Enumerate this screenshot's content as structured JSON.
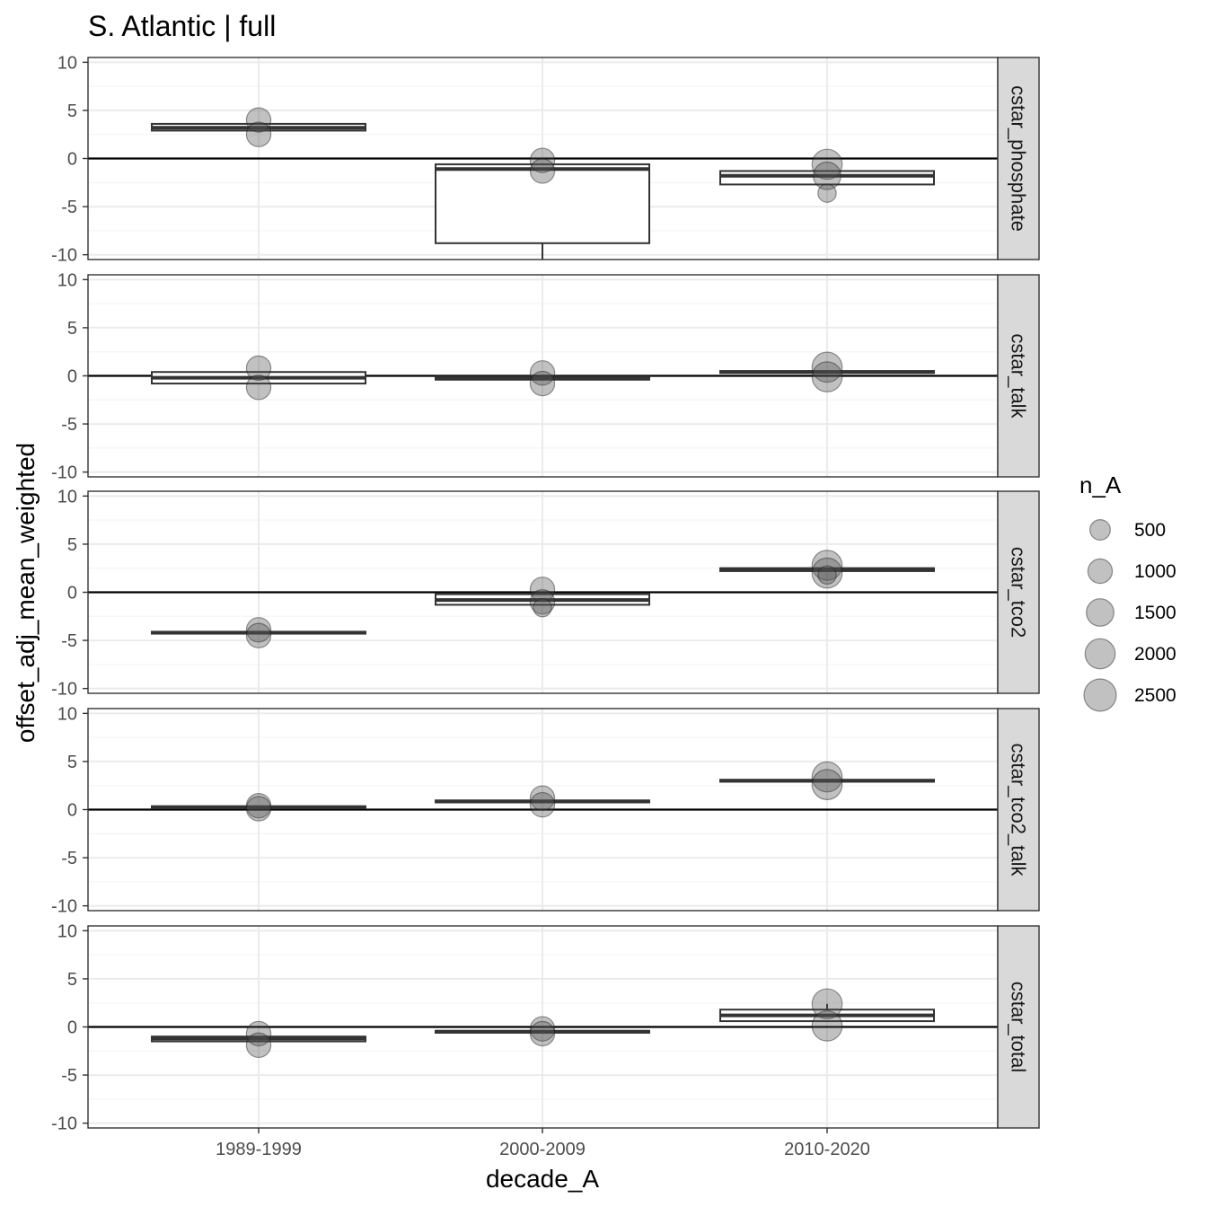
{
  "chart_data": {
    "type": "box",
    "title": "S. Atlantic | full",
    "xlabel": "decade_A",
    "ylabel": "offset_adj_mean_weighted",
    "categories": [
      "1989-1999",
      "2000-2009",
      "2010-2020"
    ],
    "ylim": [
      -10.5,
      10.5
    ],
    "yticks": [
      10,
      5,
      0,
      -5,
      -10
    ],
    "ytick_labels": [
      "10",
      "5",
      "0",
      "-5",
      "-10"
    ],
    "grid": true,
    "reference_line": 0,
    "legend": {
      "title": "n_A",
      "position": "right",
      "labels": [
        "500",
        "1000",
        "1500",
        "2000",
        "2500"
      ],
      "values": [
        500,
        1000,
        1500,
        2000,
        2500
      ]
    },
    "panels": [
      {
        "label": "cstar_phosphate",
        "boxes": [
          {
            "category": "1989-1999",
            "q1": 2.9,
            "median": 3.2,
            "q3": 3.6,
            "whisker_low": 2.9,
            "whisker_high": 3.6
          },
          {
            "category": "2000-2009",
            "q1": -8.8,
            "median": -1.1,
            "q3": -0.6,
            "whisker_low": -12,
            "whisker_high": -0.6
          },
          {
            "category": "2010-2020",
            "q1": -2.7,
            "median": -1.8,
            "q3": -1.3,
            "whisker_low": -2.7,
            "whisker_high": -1.3
          }
        ],
        "points": [
          {
            "category": "1989-1999",
            "y": 4.0,
            "n": 1000
          },
          {
            "category": "1989-1999",
            "y": 2.5,
            "n": 1000
          },
          {
            "category": "2000-2009",
            "y": -0.2,
            "n": 1000
          },
          {
            "category": "2000-2009",
            "y": -1.3,
            "n": 1000
          },
          {
            "category": "2010-2020",
            "y": -0.6,
            "n": 2000
          },
          {
            "category": "2010-2020",
            "y": -1.8,
            "n": 1500
          },
          {
            "category": "2010-2020",
            "y": -3.6,
            "n": 300
          }
        ]
      },
      {
        "label": "cstar_talk",
        "boxes": [
          {
            "category": "1989-1999",
            "q1": -0.8,
            "median": -0.2,
            "q3": 0.4,
            "whisker_low": -0.8,
            "whisker_high": 0.4
          },
          {
            "category": "2000-2009",
            "q1": -0.4,
            "median": -0.2,
            "q3": -0.1,
            "whisker_low": -0.4,
            "whisker_high": -0.1
          },
          {
            "category": "2010-2020",
            "q1": 0.3,
            "median": 0.4,
            "q3": 0.5,
            "whisker_low": 0.3,
            "whisker_high": 0.5
          }
        ],
        "points": [
          {
            "category": "1989-1999",
            "y": 0.8,
            "n": 1000
          },
          {
            "category": "1989-1999",
            "y": -1.2,
            "n": 1000
          },
          {
            "category": "2000-2009",
            "y": 0.3,
            "n": 1000
          },
          {
            "category": "2000-2009",
            "y": -0.8,
            "n": 1000
          },
          {
            "category": "2010-2020",
            "y": 0.9,
            "n": 2000
          },
          {
            "category": "2010-2020",
            "y": -0.1,
            "n": 2000
          }
        ]
      },
      {
        "label": "cstar_tco2",
        "boxes": [
          {
            "category": "1989-1999",
            "q1": -4.3,
            "median": -4.2,
            "q3": -4.1,
            "whisker_low": -4.3,
            "whisker_high": -4.1
          },
          {
            "category": "2000-2009",
            "q1": -1.3,
            "median": -0.8,
            "q3": -0.2,
            "whisker_low": -1.3,
            "whisker_high": -0.2
          },
          {
            "category": "2010-2020",
            "q1": 2.2,
            "median": 2.4,
            "q3": 2.5,
            "whisker_low": 2.2,
            "whisker_high": 2.5
          }
        ],
        "points": [
          {
            "category": "1989-1999",
            "y": -3.9,
            "n": 1000
          },
          {
            "category": "1989-1999",
            "y": -4.5,
            "n": 1000
          },
          {
            "category": "2000-2009",
            "y": 0.3,
            "n": 1000
          },
          {
            "category": "2000-2009",
            "y": -1.0,
            "n": 1000
          },
          {
            "category": "2000-2009",
            "y": -1.6,
            "n": 300
          },
          {
            "category": "2010-2020",
            "y": 2.8,
            "n": 2000
          },
          {
            "category": "2010-2020",
            "y": 2.0,
            "n": 2000
          },
          {
            "category": "2010-2020",
            "y": 1.8,
            "n": 300
          }
        ]
      },
      {
        "label": "cstar_tco2_talk",
        "boxes": [
          {
            "category": "1989-1999",
            "q1": 0.15,
            "median": 0.25,
            "q3": 0.35,
            "whisker_low": 0.15,
            "whisker_high": 0.35
          },
          {
            "category": "2000-2009",
            "q1": 0.75,
            "median": 0.85,
            "q3": 0.95,
            "whisker_low": 0.75,
            "whisker_high": 0.95
          },
          {
            "category": "2010-2020",
            "q1": 2.9,
            "median": 3.0,
            "q3": 3.1,
            "whisker_low": 2.9,
            "whisker_high": 3.1
          }
        ],
        "points": [
          {
            "category": "1989-1999",
            "y": 0.4,
            "n": 1000
          },
          {
            "category": "1989-1999",
            "y": 0.1,
            "n": 1000
          },
          {
            "category": "2000-2009",
            "y": 1.2,
            "n": 1000
          },
          {
            "category": "2000-2009",
            "y": 0.5,
            "n": 1000
          },
          {
            "category": "2010-2020",
            "y": 3.4,
            "n": 2000
          },
          {
            "category": "2010-2020",
            "y": 2.6,
            "n": 2000
          }
        ]
      },
      {
        "label": "cstar_total",
        "boxes": [
          {
            "category": "1989-1999",
            "q1": -1.5,
            "median": -1.2,
            "q3": -1.0,
            "whisker_low": -1.5,
            "whisker_high": -1.0
          },
          {
            "category": "2000-2009",
            "q1": -0.6,
            "median": -0.5,
            "q3": -0.4,
            "whisker_low": -0.6,
            "whisker_high": -0.4
          },
          {
            "category": "2010-2020",
            "q1": 0.6,
            "median": 1.2,
            "q3": 1.8,
            "whisker_low": 0.6,
            "whisker_high": 2.4
          }
        ],
        "points": [
          {
            "category": "1989-1999",
            "y": -0.7,
            "n": 1000
          },
          {
            "category": "1989-1999",
            "y": -1.9,
            "n": 1000
          },
          {
            "category": "2000-2009",
            "y": -0.2,
            "n": 1000
          },
          {
            "category": "2000-2009",
            "y": -0.7,
            "n": 1000
          },
          {
            "category": "2010-2020",
            "y": 2.4,
            "n": 2000
          },
          {
            "category": "2010-2020",
            "y": 0.1,
            "n": 2000
          }
        ]
      }
    ]
  },
  "colors": {
    "panel_border": "#333333",
    "strip_fill": "#d9d9d9",
    "grid_major": "#ebebeb",
    "grid_minor": "#f5f5f5",
    "box_stroke": "#333333",
    "point_fill": "#4d4d4d",
    "point_stroke": "#1a1a1a",
    "ref_line": "#000000",
    "tick_text": "#4d4d4d"
  }
}
